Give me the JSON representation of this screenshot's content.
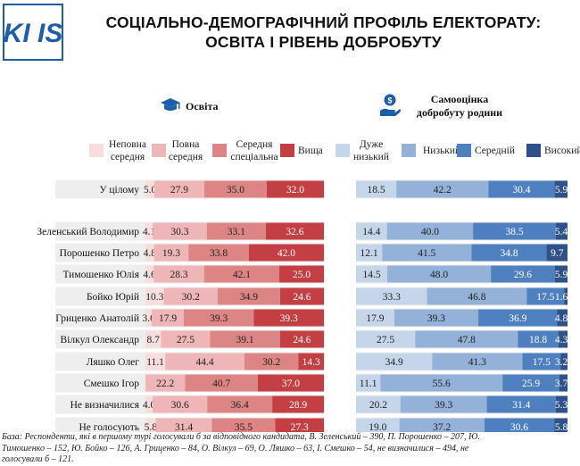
{
  "header": {
    "logo_text": "KI IS",
    "title_line1": "СОЦІАЛЬНО-ДЕМОГРАФІЧНИЙ ПРОФІЛЬ ЕЛЕКТОРАТУ:",
    "title_line2": "ОСВІТА І РІВЕНЬ ДОБРОБУТУ"
  },
  "sections": {
    "education_title": "Освіта",
    "wealth_title_line1": "Самооцінка",
    "wealth_title_line2": "добробуту родини"
  },
  "icons": {
    "education": "graduation-cap-icon",
    "wealth": "hand-money-icon"
  },
  "colors": {
    "edu": [
      "#f6dede",
      "#eeb6b6",
      "#dd8585",
      "#c33f43"
    ],
    "wealth": [
      "#c6d6ea",
      "#93b1d9",
      "#4e7fbe",
      "#2d5188"
    ],
    "stripe": "#eeeeee"
  },
  "chart_data": {
    "type": "stacked-bar",
    "title": "Соціально-демографічний профіль електорату: освіта і рівень добробуту",
    "categories": [
      "У цілому",
      "Зеленський Володимир",
      "Порошенко Петро",
      "Тимошенко Юлія",
      "Бойко Юрій",
      "Гриценко Анатолій",
      "Вілкул Олександр",
      "Ляшко Олег",
      "Смешко Ігор",
      "Не визначилися",
      "Не голосують"
    ],
    "education": {
      "legend": [
        [
          "Неповна",
          "середня"
        ],
        [
          "Повна",
          "середня"
        ],
        [
          "Середня",
          "спеціальна"
        ],
        [
          "Вища"
        ]
      ],
      "series": [
        {
          "name": "Неповна середня",
          "values": [
            5.0,
            4.1,
            4.8,
            4.6,
            10.3,
            3.6,
            8.7,
            11.1,
            0,
            4.0,
            5.8
          ]
        },
        {
          "name": "Повна середня",
          "values": [
            27.9,
            30.3,
            19.3,
            28.3,
            30.2,
            17.9,
            27.5,
            44.4,
            22.2,
            30.6,
            31.4
          ]
        },
        {
          "name": "Середня спеціальна",
          "values": [
            35.0,
            33.1,
            33.8,
            42.1,
            34.9,
            39.3,
            39.1,
            30.2,
            40.7,
            36.4,
            35.5
          ]
        },
        {
          "name": "Вища",
          "values": [
            32.0,
            32.6,
            42.0,
            25.0,
            24.6,
            39.3,
            24.6,
            14.3,
            37.0,
            28.9,
            27.3
          ]
        }
      ],
      "labels": [
        [
          "5.0",
          "27.9",
          "35.0",
          "32.0"
        ],
        [
          "4.1",
          "30.3",
          "33.1",
          "32.6"
        ],
        [
          "4.8",
          "19.3",
          "33.8",
          "42.0"
        ],
        [
          "4.6",
          "28.3",
          "42.1",
          "25.0"
        ],
        [
          "10.3",
          "30.2",
          "34.9",
          "24.6"
        ],
        [
          "3.6",
          "17.9",
          "39.3",
          "39.3"
        ],
        [
          "8.7",
          "27.5",
          "39.1",
          "24.6"
        ],
        [
          "11.1",
          "44.4",
          "30.2",
          "14.3"
        ],
        [
          "",
          "22.2",
          "40.7",
          "37.0"
        ],
        [
          "4.0",
          "30.6",
          "36.4",
          "28.9"
        ],
        [
          "5.8",
          "31.4",
          "35.5",
          "27.3"
        ]
      ]
    },
    "wealth": {
      "legend": [
        [
          "Дуже",
          "низький"
        ],
        [
          "Низький"
        ],
        [
          "Середній"
        ],
        [
          "Високий"
        ]
      ],
      "series": [
        {
          "name": "Дуже низький",
          "values": [
            18.5,
            14.4,
            12.1,
            14.5,
            33.3,
            17.9,
            27.5,
            34.9,
            11.1,
            20.2,
            19.0
          ]
        },
        {
          "name": "Низький",
          "values": [
            42.2,
            40.0,
            41.5,
            48.0,
            46.8,
            39.3,
            47.8,
            41.3,
            55.6,
            39.3,
            37.2
          ]
        },
        {
          "name": "Середній",
          "values": [
            30.4,
            38.5,
            34.8,
            29.6,
            17.5,
            36.9,
            18.8,
            17.5,
            25.9,
            31.4,
            30.6
          ]
        },
        {
          "name": "Високий",
          "values": [
            5.9,
            5.4,
            9.7,
            5.9,
            1.6,
            4.8,
            4.3,
            3.2,
            3.7,
            5.3,
            5.8
          ]
        }
      ],
      "labels": [
        [
          "18.5",
          "42.2",
          "30.4",
          "5.9"
        ],
        [
          "14.4",
          "40.0",
          "38.5",
          "5.4"
        ],
        [
          "12.1",
          "41.5",
          "34.8",
          "9.7"
        ],
        [
          "14.5",
          "48.0",
          "29.6",
          "5.9"
        ],
        [
          "33.3",
          "46.8",
          "17.5",
          "1.6"
        ],
        [
          "17.9",
          "39.3",
          "36.9",
          "4.8"
        ],
        [
          "27.5",
          "47.8",
          "18.8",
          "4.3"
        ],
        [
          "34.9",
          "41.3",
          "17.5",
          "3.2"
        ],
        [
          "11.1",
          "55.6",
          "25.9",
          "3.7"
        ],
        [
          "20.2",
          "39.3",
          "31.4",
          "5.3"
        ],
        [
          "19.0",
          "37.2",
          "30.6",
          "5.8"
        ]
      ]
    },
    "xlim": [
      0,
      100
    ]
  },
  "footer": {
    "line1": "База: Респонденти, які в першому турі голосували б за відповідного кандидата, В. Зеленський – 390, П. Порошенко – 207, Ю.",
    "line2": "Тимошенко – 152, Ю. Бойко – 126, А. Гриценко – 84, О. Вілкул – 69, О. Ляшко – 63, І. Смешко – 54, не визначилися – 494, не",
    "line3": "голосували б – 121."
  }
}
